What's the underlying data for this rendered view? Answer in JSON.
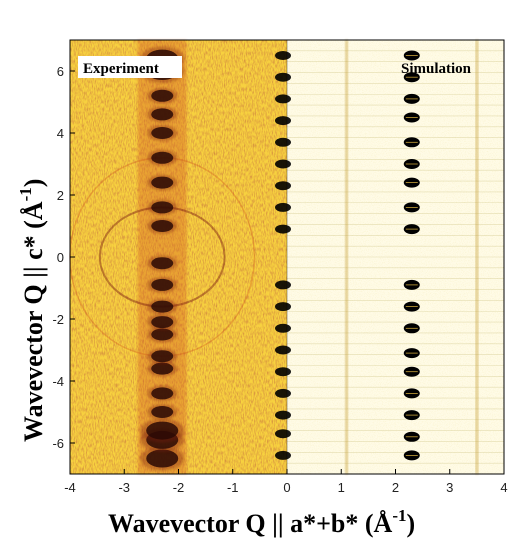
{
  "chart_data": {
    "type": "heatmap",
    "panels": [
      {
        "name": "Experiment",
        "x_range": [
          -4,
          0
        ],
        "colormap": [
          "#f9e04a",
          "#f3b42a",
          "#d2531a",
          "#7a1a10",
          "#000000"
        ]
      },
      {
        "name": "Simulation",
        "x_range": [
          0,
          4
        ],
        "colormap": [
          "#fffbe6",
          "#f1e6a8",
          "#c7a23a",
          "#000000"
        ]
      }
    ],
    "xlabel": "Wavevector Q || a*+b* (Å",
    "xlabel_sup": "-1",
    "xlabel_close": ")",
    "ylabel": "Wavevector Q || c* (Å",
    "ylabel_sup": "-1",
    "ylabel_close": ")",
    "xlim": [
      -4,
      4
    ],
    "ylim": [
      -7,
      7
    ],
    "xticks": [
      -4,
      -3,
      -2,
      -1,
      0,
      1,
      2,
      3,
      4
    ],
    "yticks": [
      -6,
      -4,
      -2,
      0,
      2,
      4,
      6
    ],
    "grid": "horizontal gridlines on simulation panel",
    "experiment_peaks_x": [
      -2.3,
      0
    ],
    "experiment_peaks_y": [
      -6.5,
      -5.9,
      -5.6,
      -5.0,
      -4.4,
      -3.6,
      -3.2,
      -2.5,
      -2.1,
      -1.6,
      -0.9,
      -0.2,
      1.0,
      1.6,
      2.4,
      3.2,
      4.0,
      4.6,
      5.2,
      6.0,
      6.4
    ],
    "simulation_peaks": {
      "x": 2.3,
      "y": [
        -6.4,
        -5.8,
        -5.1,
        -4.4,
        -3.7,
        -3.1,
        -2.3,
        -1.6,
        -0.9,
        0.9,
        1.6,
        2.4,
        3.0,
        3.7,
        4.5,
        5.1,
        5.8,
        6.5
      ]
    },
    "simulation_edge_peaks": {
      "x": 0,
      "y": [
        -6.4,
        -5.7,
        -5.1,
        -4.4,
        -3.7,
        -3.0,
        -2.3,
        -1.6,
        -0.9,
        0.9,
        1.6,
        2.3,
        3.0,
        3.7,
        4.4,
        5.1,
        5.8,
        6.5
      ]
    },
    "faint_streaks_x": [
      1.1,
      3.5
    ]
  }
}
